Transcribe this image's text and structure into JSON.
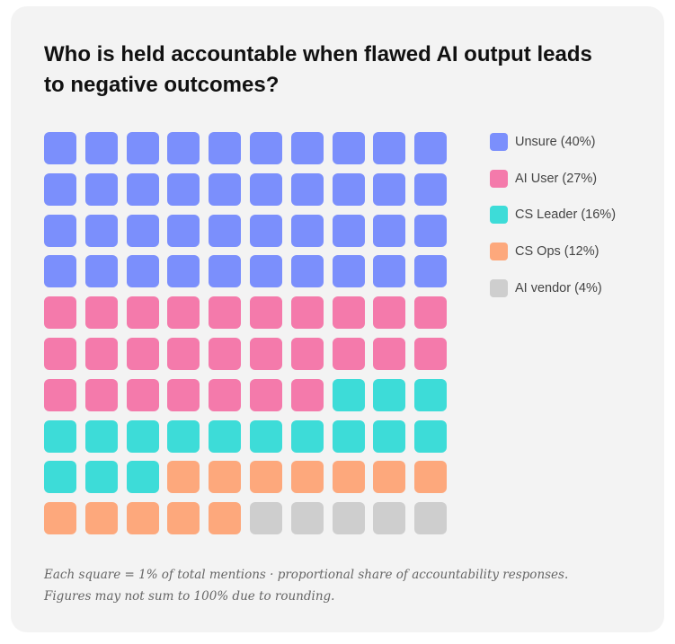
{
  "chart_data": {
    "type": "waffle",
    "title": "Who is held accountable when flawed AI output leads to negative outcomes?",
    "grid": {
      "rows": 10,
      "cols": 10
    },
    "categories": [
      "Unsure",
      "AI User",
      "CS Leader",
      "CS Ops",
      "AI vendor"
    ],
    "values": [
      40,
      27,
      16,
      12,
      4
    ],
    "value_unit": "%",
    "colors": [
      "#7b8ffc",
      "#f47aab",
      "#3ddcd8",
      "#fda87c",
      "#cecece"
    ],
    "empty_color": "#cecece",
    "legend_labels": [
      "Unsure (40%)",
      "AI User (27%)",
      "CS Leader (16%)",
      "CS Ops (12%)",
      "AI vendor (4%)"
    ],
    "legend_position": "right",
    "footnote": [
      "Each square = 1% of total mentions · proportional share of accountability responses.",
      "Figures may not sum to 100% due to rounding."
    ]
  }
}
